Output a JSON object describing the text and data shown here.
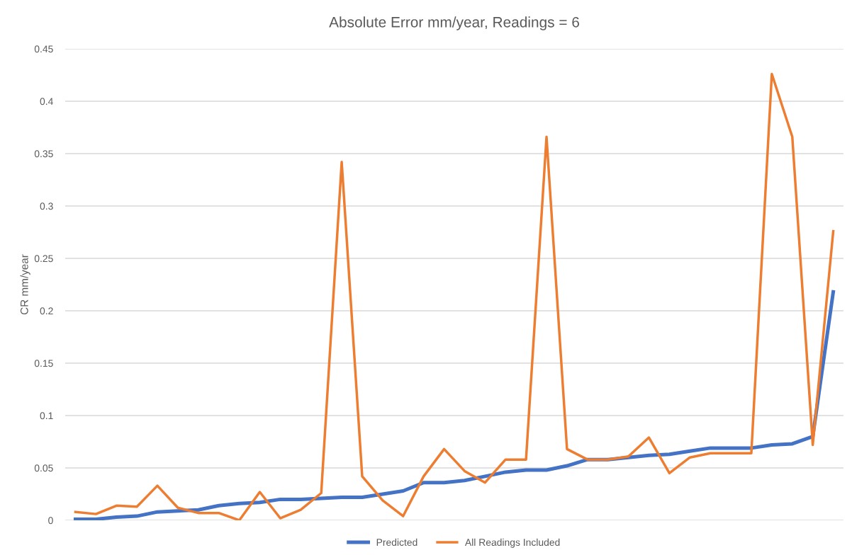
{
  "chart_data": {
    "type": "line",
    "title": "Absolute Error mm/year, Readings = 6",
    "ylabel": "CR mm/year",
    "categories": [
      null,
      null,
      null,
      null,
      null,
      null,
      null,
      null,
      null,
      null,
      null,
      null,
      null,
      null,
      null,
      null,
      null,
      null,
      null,
      null,
      null,
      null,
      null,
      null,
      null,
      null,
      null,
      null,
      null,
      null,
      null,
      null,
      null,
      null,
      null,
      null,
      null,
      null
    ],
    "series": [
      {
        "name": "Predicted",
        "color": "#4472c4",
        "values": [
          0.001,
          0.001,
          0.003,
          0.004,
          0.008,
          0.009,
          0.01,
          0.014,
          0.016,
          0.017,
          0.02,
          0.02,
          0.021,
          0.022,
          0.022,
          0.025,
          0.028,
          0.036,
          0.036,
          0.038,
          0.042,
          0.046,
          0.048,
          0.048,
          0.052,
          0.058,
          0.058,
          0.06,
          0.062,
          0.063,
          0.066,
          0.069,
          0.069,
          0.069,
          0.072,
          0.073,
          0.08,
          0.218
        ]
      },
      {
        "name": "All Readings Included",
        "color": "#ed7d31",
        "values": [
          0.008,
          0.006,
          0.014,
          0.013,
          0.033,
          0.012,
          0.007,
          0.007,
          0.0,
          0.027,
          0.002,
          0.01,
          0.026,
          0.342,
          0.042,
          0.019,
          0.004,
          0.042,
          0.068,
          0.047,
          0.036,
          0.058,
          0.058,
          0.366,
          0.068,
          0.058,
          0.058,
          0.061,
          0.079,
          0.045,
          0.06,
          0.064,
          0.064,
          0.064,
          0.426,
          0.366,
          0.072,
          0.276
        ]
      }
    ],
    "ylim": [
      0,
      0.45
    ],
    "yticks": [
      {
        "value": 0,
        "label": "0"
      },
      0.05,
      0.1,
      0.15,
      0.2,
      0.25,
      0.3,
      0.35,
      0.4,
      0.45
    ],
    "grid": "y",
    "legend": "bottom",
    "tick_labels": "y"
  }
}
